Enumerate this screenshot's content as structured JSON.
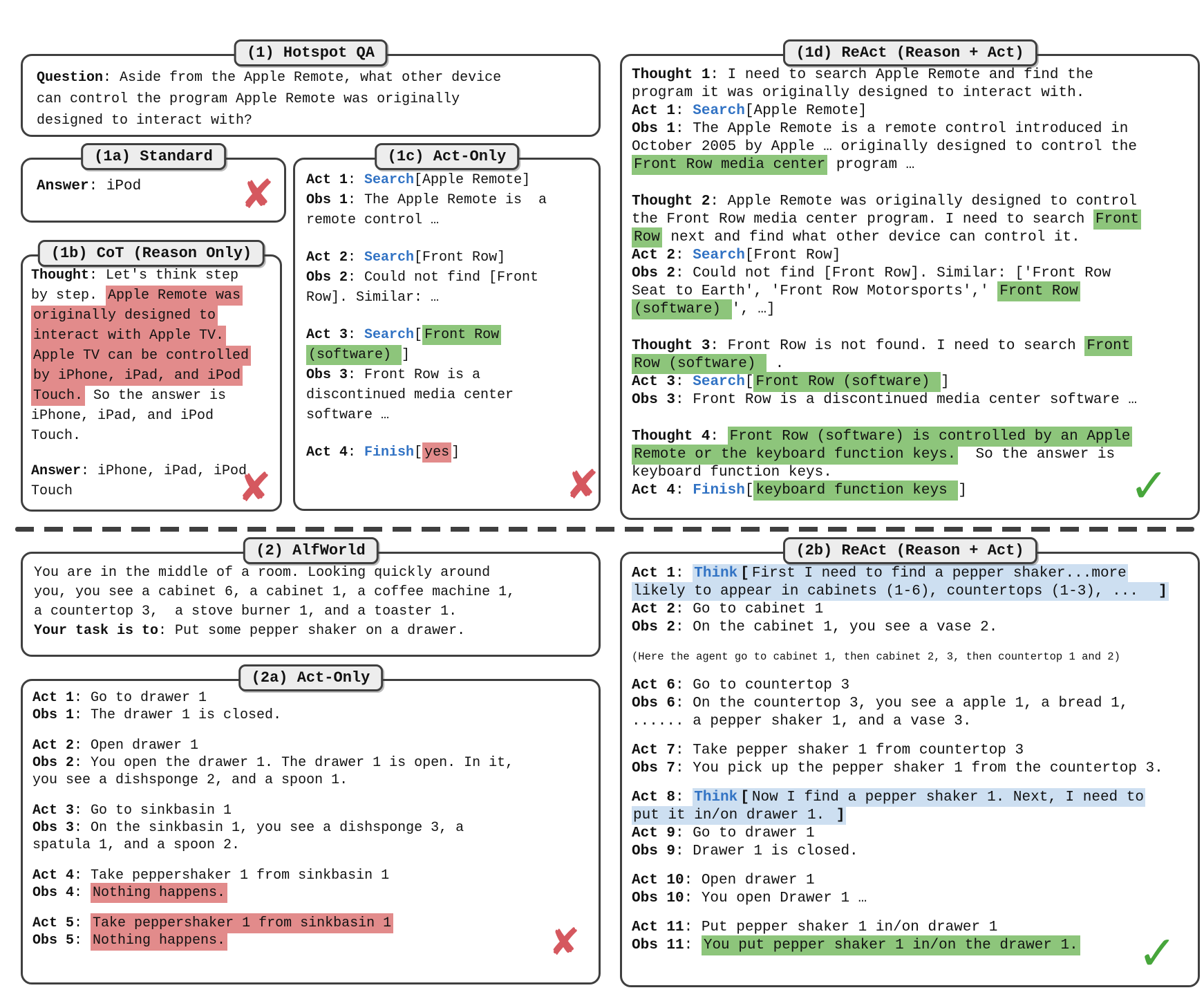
{
  "colors": {
    "keyword_blue": "#3273c4",
    "highlight_green": "#8dc57b",
    "highlight_red": "#e28b8b",
    "highlight_blue": "#cddff1",
    "cross_red": "#d5585f",
    "check_green": "#47a63b",
    "label_bg": "#ededed",
    "border_gray": "#3f3f3f"
  },
  "panels": [
    {
      "id": "p1",
      "label": "(1) Hotspot QA",
      "lines": [
        [
          {
            "t": "Question",
            "s": "b"
          },
          {
            "t": ": Aside from the Apple Remote, what other device"
          }
        ],
        [
          {
            "t": "can control the program Apple Remote was originally"
          }
        ],
        [
          {
            "t": "designed to interact with?"
          }
        ]
      ]
    },
    {
      "id": "p1a",
      "label": "(1a) Standard",
      "lines": [
        [
          {
            "t": "Answer",
            "s": "b"
          },
          {
            "t": ": iPod"
          }
        ]
      ]
    },
    {
      "id": "p1b",
      "label": "(1b) CoT (Reason Only)",
      "lines": [
        [
          {
            "t": "Thought",
            "s": "b"
          },
          {
            "t": ": Let's think step"
          }
        ],
        [
          {
            "t": "by step. "
          },
          {
            "t": "Apple Remote was",
            "s": "hr"
          }
        ],
        [
          {
            "t": "originally designed to",
            "s": "hr"
          }
        ],
        [
          {
            "t": "interact with Apple TV.",
            "s": "hr"
          }
        ],
        [
          {
            "t": "Apple TV can be controlled",
            "s": "hr"
          }
        ],
        [
          {
            "t": "by iPhone, iPad, and iPod",
            "s": "hr"
          }
        ],
        [
          {
            "t": "Touch.",
            "s": "hr"
          },
          {
            "t": " So the answer is"
          }
        ],
        [
          {
            "t": "iPhone, iPad, and iPod"
          }
        ],
        [
          {
            "t": "Touch."
          }
        ],
        [],
        [
          {
            "t": "Answer",
            "s": "b"
          },
          {
            "t": ": iPhone, iPad, iPod"
          }
        ],
        [
          {
            "t": "Touch"
          }
        ]
      ]
    },
    {
      "id": "p1c",
      "label": "(1c) Act-Only",
      "lines": [
        [
          {
            "t": "Act 1",
            "s": "b"
          },
          {
            "t": ": "
          },
          {
            "t": "Search",
            "s": "kw"
          },
          {
            "t": "[Apple Remote]"
          }
        ],
        [
          {
            "t": "Obs 1",
            "s": "b"
          },
          {
            "t": ": The Apple Remote is  a"
          }
        ],
        [
          {
            "t": "remote control …"
          }
        ],
        [],
        [
          {
            "t": "Act 2",
            "s": "b"
          },
          {
            "t": ": "
          },
          {
            "t": "Search",
            "s": "kw"
          },
          {
            "t": "[Front Row]"
          }
        ],
        [
          {
            "t": "Obs 2",
            "s": "b"
          },
          {
            "t": ": Could not find [Front"
          }
        ],
        [
          {
            "t": "Row]. Similar: …"
          }
        ],
        [],
        [
          {
            "t": "Act 3",
            "s": "b"
          },
          {
            "t": ": "
          },
          {
            "t": "Search",
            "s": "kw"
          },
          {
            "t": "["
          },
          {
            "t": "Front Row",
            "s": "hg"
          }
        ],
        [
          {
            "t": "(software) ",
            "s": "hg"
          },
          {
            "t": "]"
          }
        ],
        [
          {
            "t": "Obs 3",
            "s": "b"
          },
          {
            "t": ": Front Row is a"
          }
        ],
        [
          {
            "t": "discontinued media center"
          }
        ],
        [
          {
            "t": "software …"
          }
        ],
        [],
        [
          {
            "t": "Act 4",
            "s": "b"
          },
          {
            "t": ": "
          },
          {
            "t": "Finish",
            "s": "kw"
          },
          {
            "t": "["
          },
          {
            "t": "yes",
            "s": "hr"
          },
          {
            "t": "]"
          }
        ]
      ]
    },
    {
      "id": "p1d",
      "label": "(1d) ReAct (Reason + Act)",
      "lines": [
        [
          {
            "t": "Thought 1",
            "s": "b"
          },
          {
            "t": ": I need to search Apple Remote and find the"
          }
        ],
        [
          {
            "t": "program it was originally designed to interact with."
          }
        ],
        [
          {
            "t": "Act 1",
            "s": "b"
          },
          {
            "t": ": "
          },
          {
            "t": "Search",
            "s": "kw"
          },
          {
            "t": "[Apple Remote]"
          }
        ],
        [
          {
            "t": "Obs 1",
            "s": "b"
          },
          {
            "t": ": The Apple Remote is a remote control introduced in"
          }
        ],
        [
          {
            "t": "October 2005 by Apple … originally designed to control the"
          }
        ],
        [
          {
            "t": "Front Row media center",
            "s": "hg"
          },
          {
            "t": " program …"
          }
        ],
        [],
        [
          {
            "t": "Thought 2",
            "s": "b"
          },
          {
            "t": ": Apple Remote was originally designed to control"
          }
        ],
        [
          {
            "t": "the Front Row media center program. I need to search "
          },
          {
            "t": "Front",
            "s": "hg"
          }
        ],
        [
          {
            "t": "Row",
            "s": "hg"
          },
          {
            "t": " next and find what other device can control it."
          }
        ],
        [
          {
            "t": "Act 2",
            "s": "b"
          },
          {
            "t": ": "
          },
          {
            "t": "Search",
            "s": "kw"
          },
          {
            "t": "[Front Row]"
          }
        ],
        [
          {
            "t": "Obs 2",
            "s": "b"
          },
          {
            "t": ": Could not find [Front Row]. Similar: ['Front Row"
          }
        ],
        [
          {
            "t": "Seat to Earth', 'Front Row Motorsports',' "
          },
          {
            "t": "Front Row",
            "s": "hg"
          }
        ],
        [
          {
            "t": "(software) ",
            "s": "hg"
          },
          {
            "t": "', …]"
          }
        ],
        [],
        [
          {
            "t": "Thought 3",
            "s": "b"
          },
          {
            "t": ": Front Row is not found. I need to search "
          },
          {
            "t": "Front",
            "s": "hg"
          }
        ],
        [
          {
            "t": "Row (software) ",
            "s": "hg"
          },
          {
            "t": " ."
          }
        ],
        [
          {
            "t": "Act 3",
            "s": "b"
          },
          {
            "t": ": "
          },
          {
            "t": "Search",
            "s": "kw"
          },
          {
            "t": "["
          },
          {
            "t": "Front Row (software) ",
            "s": "hg"
          },
          {
            "t": "]"
          }
        ],
        [
          {
            "t": "Obs 3",
            "s": "b"
          },
          {
            "t": ": Front Row is a discontinued media center software …"
          }
        ],
        [],
        [
          {
            "t": "Thought 4",
            "s": "b"
          },
          {
            "t": ": "
          },
          {
            "t": "Front Row (software) is controlled by an Apple",
            "s": "hg"
          }
        ],
        [
          {
            "t": "Remote or the keyboard function keys.",
            "s": "hg"
          },
          {
            "t": "  So the answer is"
          }
        ],
        [
          {
            "t": "keyboard function keys."
          }
        ],
        [
          {
            "t": "Act 4",
            "s": "b"
          },
          {
            "t": ": "
          },
          {
            "t": "Finish",
            "s": "kw"
          },
          {
            "t": "["
          },
          {
            "t": "keyboard function keys ",
            "s": "hg"
          },
          {
            "t": "]"
          }
        ]
      ]
    },
    {
      "id": "p2",
      "label": "(2) AlfWorld",
      "lines": [
        [
          {
            "t": "You are in the middle of a room. Looking quickly around"
          }
        ],
        [
          {
            "t": "you, you see a cabinet 6, a cabinet 1, a coffee machine 1,"
          }
        ],
        [
          {
            "t": "a countertop 3,  a stove burner 1, and a toaster 1."
          }
        ],
        [
          {
            "t": "Your task is to",
            "s": "b"
          },
          {
            "t": ": Put some pepper shaker on a drawer."
          }
        ]
      ]
    },
    {
      "id": "p2a",
      "label": "(2a) Act-Only",
      "lines": [
        [
          {
            "t": "Act 1",
            "s": "b"
          },
          {
            "t": ": Go to drawer 1"
          }
        ],
        [
          {
            "t": "Obs 1",
            "s": "b"
          },
          {
            "t": ": The drawer 1 is closed."
          }
        ],
        [],
        [
          {
            "t": "Act 2",
            "s": "b"
          },
          {
            "t": ": Open drawer 1"
          }
        ],
        [
          {
            "t": "Obs 2",
            "s": "b"
          },
          {
            "t": ": You open the drawer 1. The drawer 1 is open. In it,"
          }
        ],
        [
          {
            "t": "you see a dishsponge 2, and a spoon 1."
          }
        ],
        [],
        [
          {
            "t": "Act 3",
            "s": "b"
          },
          {
            "t": ": Go to sinkbasin 1"
          }
        ],
        [
          {
            "t": "Obs 3",
            "s": "b"
          },
          {
            "t": ": On the sinkbasin 1, you see a dishsponge 3, a"
          }
        ],
        [
          {
            "t": "spatula 1, and a spoon 2."
          }
        ],
        [],
        [
          {
            "t": "Act 4",
            "s": "b"
          },
          {
            "t": ": Take peppershaker 1 from sinkbasin 1"
          }
        ],
        [
          {
            "t": "Obs 4",
            "s": "b"
          },
          {
            "t": ": "
          },
          {
            "t": "Nothing happens.",
            "s": "hr"
          }
        ],
        [],
        [
          {
            "t": "Act 5",
            "s": "b"
          },
          {
            "t": ": "
          },
          {
            "t": "Take peppershaker 1 from sinkbasin 1",
            "s": "hr"
          }
        ],
        [
          {
            "t": "Obs 5",
            "s": "b"
          },
          {
            "t": ": "
          },
          {
            "t": "Nothing happens.",
            "s": "hr"
          }
        ]
      ]
    },
    {
      "id": "p2b",
      "label": "(2b) ReAct (Reason + Act)",
      "lines": [
        [
          {
            "t": "Act 1",
            "s": "b"
          },
          {
            "t": ": "
          },
          {
            "t": "Think",
            "s": "kw hb"
          },
          {
            "t": "[",
            "s": "b hb"
          },
          {
            "t": "First I need to find a pepper shaker...more",
            "s": "hb"
          }
        ],
        [
          {
            "t": "likely to appear in cabinets (1-6), countertops (1-3), ...  ",
            "s": "hb"
          },
          {
            "t": "]",
            "s": "b hb"
          }
        ],
        [
          {
            "t": "Act 2",
            "s": "b"
          },
          {
            "t": ": Go to cabinet 1"
          }
        ],
        [
          {
            "t": "Obs 2",
            "s": "b"
          },
          {
            "t": ": On the cabinet 1, you see a vase 2."
          }
        ],
        [],
        [
          {
            "t": "(Here the agent go to cabinet 1, then cabinet 2, 3, then countertop 1 and 2)",
            "s": "sm"
          }
        ],
        [],
        [
          {
            "t": "Act 6",
            "s": "b"
          },
          {
            "t": ": Go to countertop 3"
          }
        ],
        [
          {
            "t": "Obs 6",
            "s": "b"
          },
          {
            "t": ": On the countertop 3, you see a apple 1, a bread 1,"
          }
        ],
        [
          {
            "t": "...... a pepper shaker 1, and a vase 3."
          }
        ],
        [],
        [
          {
            "t": "Act 7",
            "s": "b"
          },
          {
            "t": ": Take pepper shaker 1 from countertop 3"
          }
        ],
        [
          {
            "t": "Obs 7",
            "s": "b"
          },
          {
            "t": ": You pick up the pepper shaker 1 from the countertop 3."
          }
        ],
        [],
        [
          {
            "t": "Act 8",
            "s": "b"
          },
          {
            "t": ": "
          },
          {
            "t": "Think",
            "s": "kw hb"
          },
          {
            "t": "[",
            "s": "b hb"
          },
          {
            "t": "Now I find a pepper shaker 1. Next, I need to",
            "s": "hb"
          }
        ],
        [
          {
            "t": "put it in/on drawer 1. ",
            "s": "hb"
          },
          {
            "t": "]",
            "s": "b hb"
          }
        ],
        [
          {
            "t": "Act 9",
            "s": "b"
          },
          {
            "t": ": Go to drawer 1"
          }
        ],
        [
          {
            "t": "Obs 9",
            "s": "b"
          },
          {
            "t": ": Drawer 1 is closed."
          }
        ],
        [],
        [
          {
            "t": "Act 10",
            "s": "b"
          },
          {
            "t": ": Open drawer 1"
          }
        ],
        [
          {
            "t": "Obs 10",
            "s": "b"
          },
          {
            "t": ": You open Drawer 1 …"
          }
        ],
        [],
        [
          {
            "t": "Act 11",
            "s": "b"
          },
          {
            "t": ": Put pepper shaker 1 in/on drawer 1"
          }
        ],
        [
          {
            "t": "Obs 11",
            "s": "b"
          },
          {
            "t": ": "
          },
          {
            "t": "You put pepper shaker 1 in/on the drawer 1.",
            "s": "hg"
          }
        ]
      ]
    }
  ],
  "marks": [
    {
      "id": "m1a",
      "type": "cross",
      "glyph": "✘"
    },
    {
      "id": "m1b",
      "type": "cross",
      "glyph": "✘"
    },
    {
      "id": "m1c",
      "type": "cross",
      "glyph": "✘"
    },
    {
      "id": "m1d",
      "type": "check",
      "glyph": "✓"
    },
    {
      "id": "m2a",
      "type": "cross",
      "glyph": "✘"
    },
    {
      "id": "m2b",
      "type": "check",
      "glyph": "✓"
    }
  ]
}
